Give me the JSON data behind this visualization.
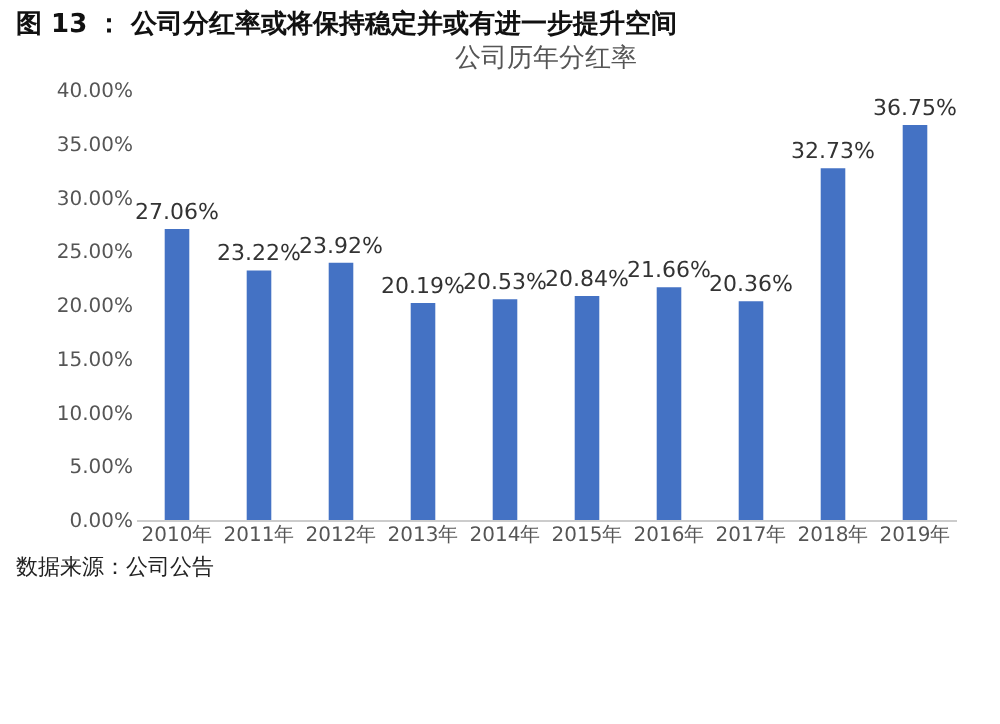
{
  "chart_data": {
    "type": "bar",
    "title": "图 13 ： 公司分红率或将保持稳定并或有进一步提升空间",
    "subtitle": "公司历年分红率",
    "categories": [
      "2010年",
      "2011年",
      "2012年",
      "2013年",
      "2014年",
      "2015年",
      "2016年",
      "2017年",
      "2018年",
      "2019年"
    ],
    "values": [
      27.06,
      23.22,
      23.92,
      20.19,
      20.53,
      20.84,
      21.66,
      20.36,
      32.73,
      36.75
    ],
    "value_labels": [
      "27.06%",
      "23.22%",
      "23.92%",
      "20.19%",
      "20.53%",
      "20.84%",
      "21.66%",
      "20.36%",
      "32.73%",
      "36.75%"
    ],
    "color": "#4472c4",
    "ylim": [
      0,
      40
    ],
    "yticks": [
      {
        "value": 0,
        "label": "0.00%"
      },
      {
        "value": 5,
        "label": "5.00%"
      },
      {
        "value": 10,
        "label": "10.00%"
      },
      {
        "value": 15,
        "label": "15.00%"
      },
      {
        "value": 20,
        "label": "20.00%"
      },
      {
        "value": 25,
        "label": "25.00%"
      },
      {
        "value": 30,
        "label": "30.00%"
      },
      {
        "value": 35,
        "label": "35.00%"
      },
      {
        "value": 40,
        "label": "40.00%"
      }
    ],
    "grid": false,
    "annotations": [
      "数据来源：公司公告"
    ]
  }
}
